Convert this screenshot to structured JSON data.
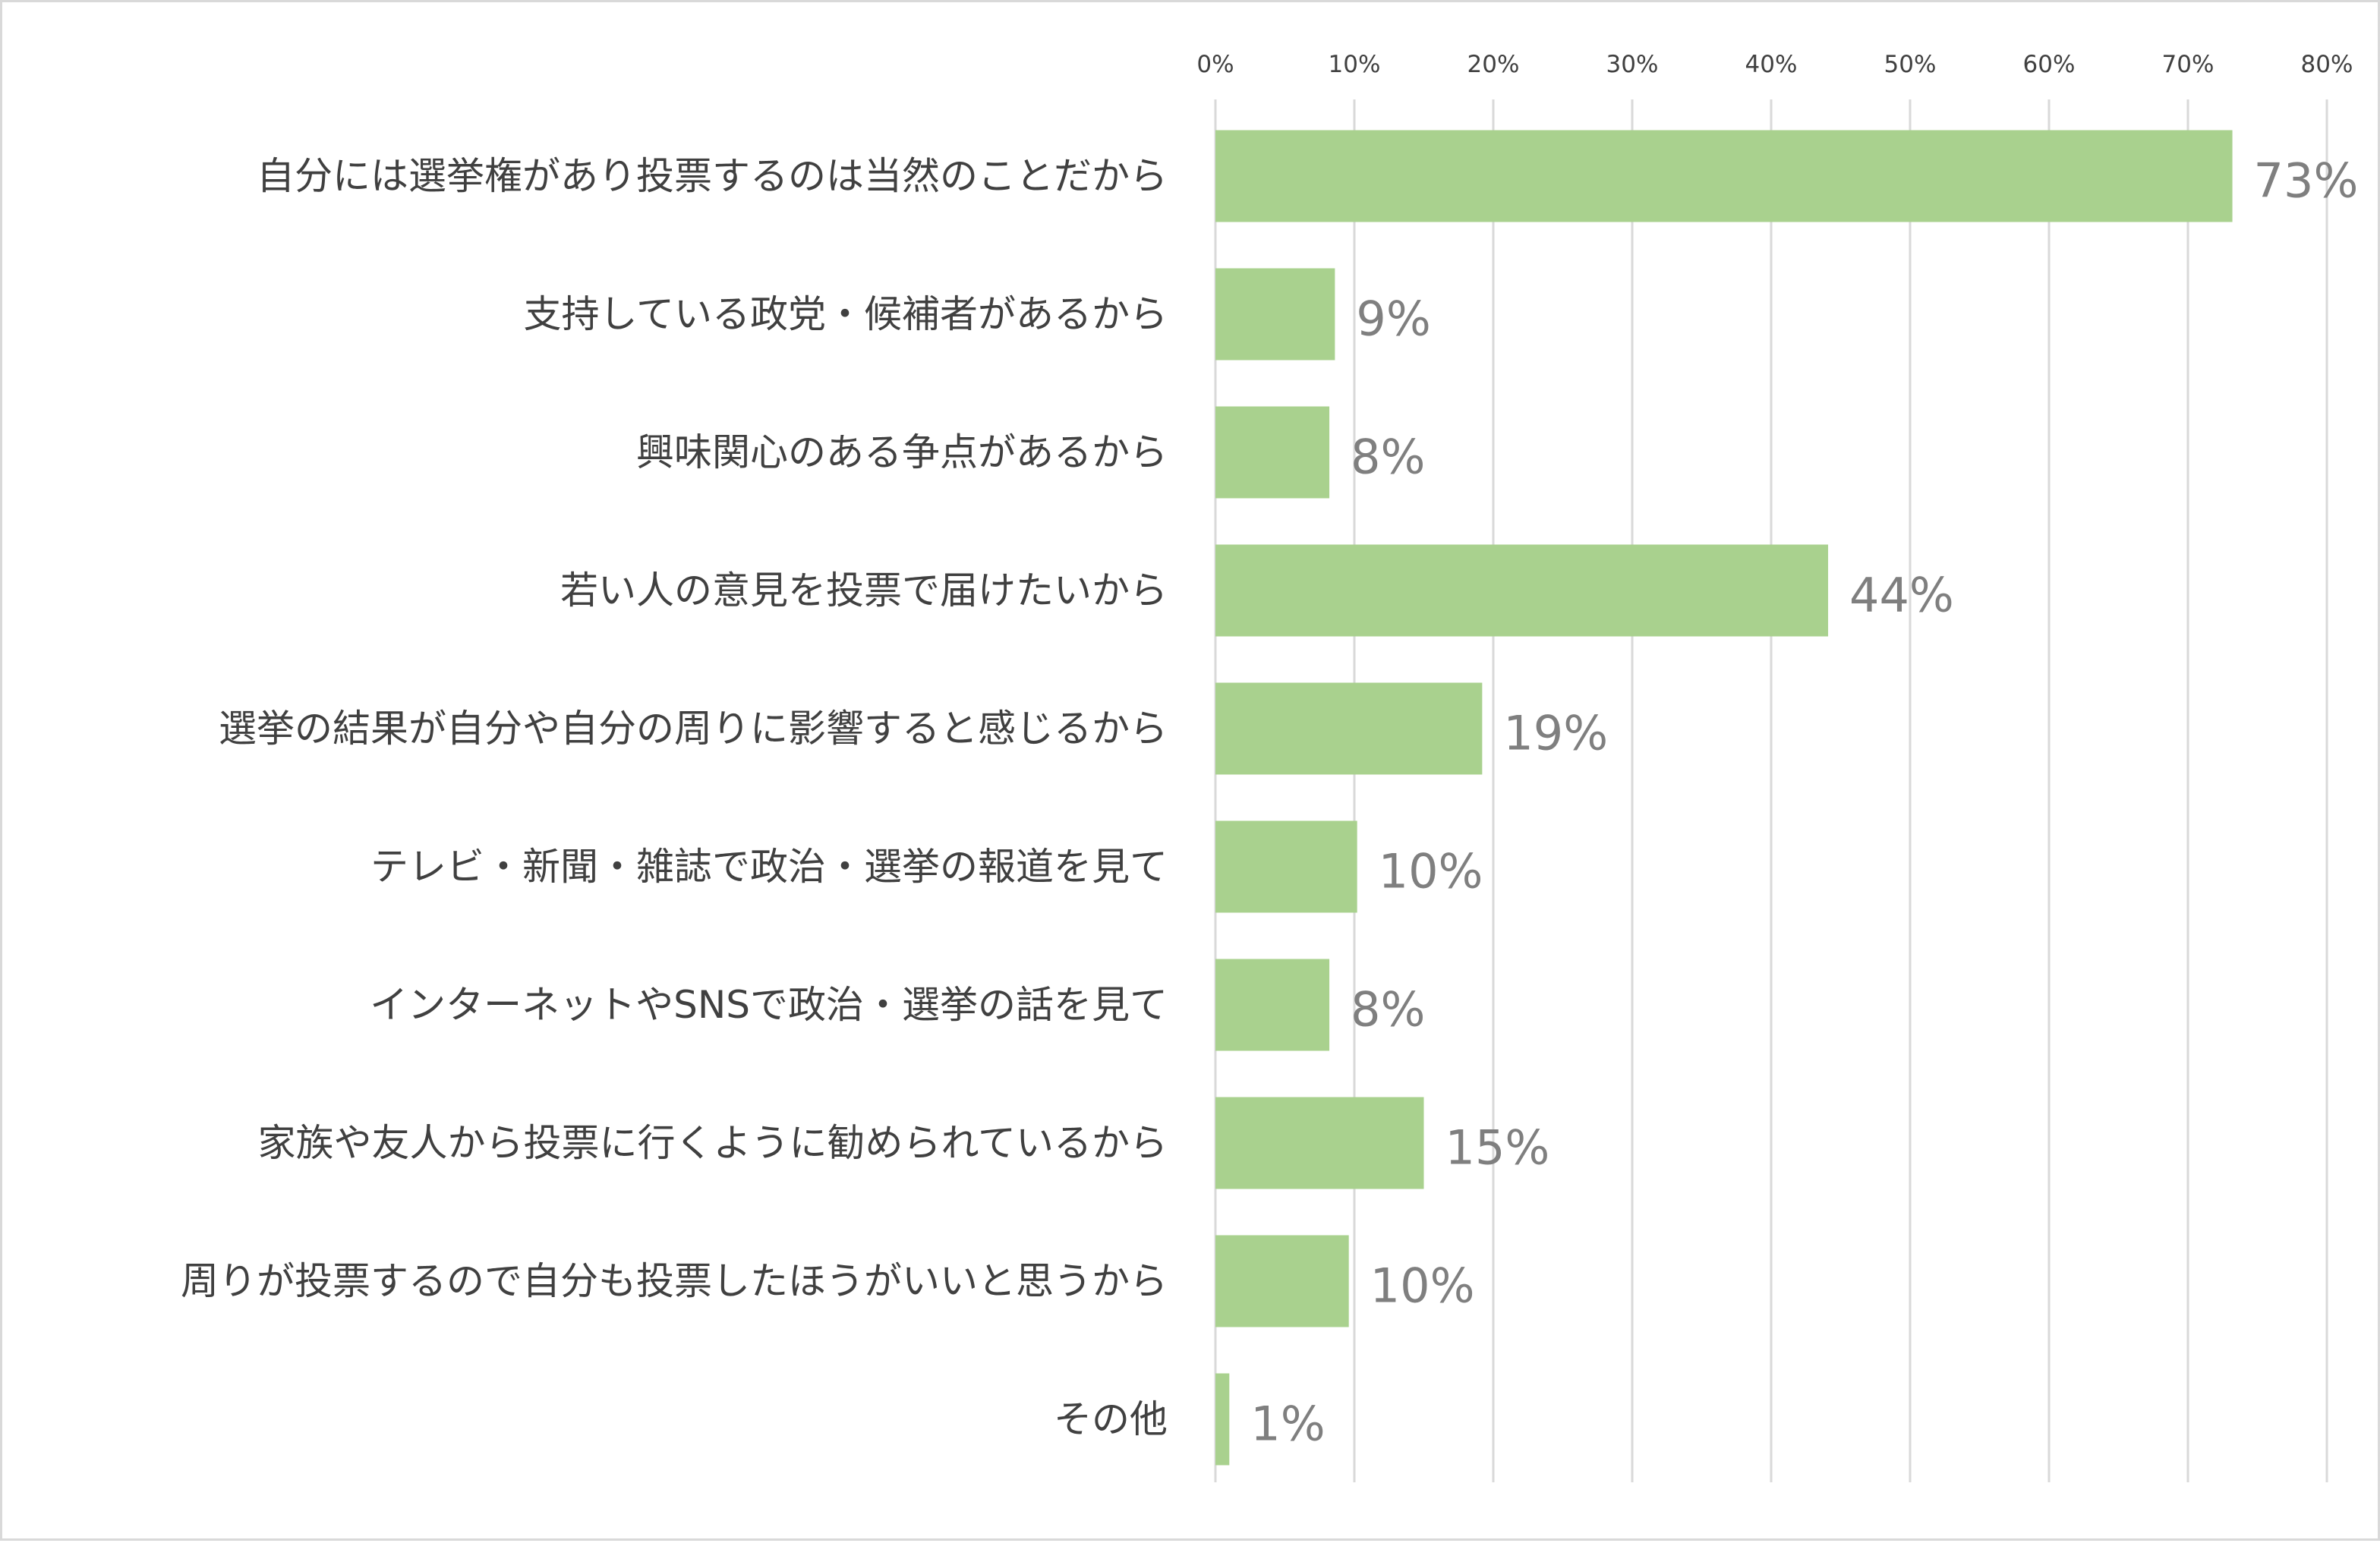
{
  "chart_data": {
    "type": "bar",
    "orientation": "horizontal",
    "title": "",
    "xlabel": "",
    "ylabel": "",
    "xlim": [
      0,
      80
    ],
    "x_ticks": [
      "0%",
      "10%",
      "20%",
      "30%",
      "40%",
      "50%",
      "60%",
      "70%",
      "80%"
    ],
    "x_tick_values": [
      0,
      10,
      20,
      30,
      40,
      50,
      60,
      70,
      80
    ],
    "x_axis_position": "top",
    "grid": true,
    "legend": "none",
    "bar_color": "#a9d18e",
    "categories": [
      "自分には選挙権があり投票するのは当然のことだから",
      "支持している政党・候補者があるから",
      "興味関心のある争点があるから",
      "若い人の意見を投票で届けたいから",
      "選挙の結果が自分や自分の周りに影響すると感じるから",
      "テレビ・新聞・雑誌で政治・選挙の報道を見て",
      "インターネットやSNSで政治・選挙の話を見て",
      "家族や友人から投票に行くように勧められているから",
      "周りが投票するので自分も投票したほうがいいと思うから",
      "その他"
    ],
    "values": [
      73.2,
      8.6,
      8.2,
      44.1,
      19.2,
      10.2,
      8.2,
      15.0,
      9.6,
      1.0
    ],
    "data_labels": [
      "73%",
      "9%",
      "8%",
      "44%",
      "19%",
      "10%",
      "8%",
      "15%",
      "10%",
      "1%"
    ]
  }
}
